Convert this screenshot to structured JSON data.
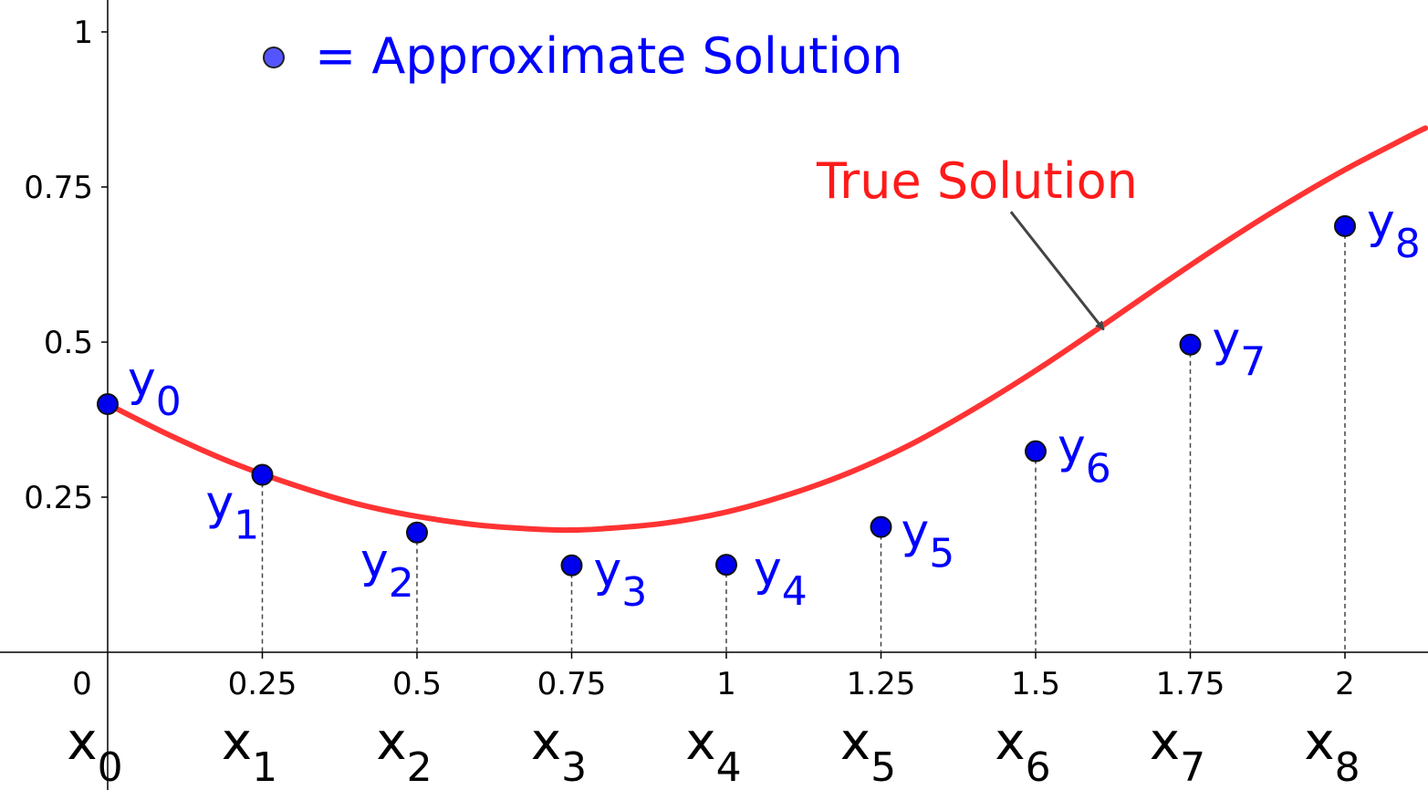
{
  "chart_data": {
    "type": "scatter",
    "x_ticks": [
      0,
      0.25,
      0.5,
      0.75,
      1,
      1.25,
      1.5,
      1.75,
      2
    ],
    "x_tick_labels": [
      "0",
      "0.25",
      "0.5",
      "0.75",
      "1",
      "1.25",
      "1.5",
      "1.75",
      "2"
    ],
    "y_ticks": [
      0.25,
      0.5,
      0.75,
      1
    ],
    "y_tick_labels": [
      "0.25",
      "0.5",
      "0.75",
      "1"
    ],
    "xlim": [
      0,
      2.13
    ],
    "ylim": [
      0,
      1.04
    ],
    "x_node_labels": [
      {
        "base": "x",
        "sub": "0"
      },
      {
        "base": "x",
        "sub": "1"
      },
      {
        "base": "x",
        "sub": "2"
      },
      {
        "base": "x",
        "sub": "3"
      },
      {
        "base": "x",
        "sub": "4"
      },
      {
        "base": "x",
        "sub": "5"
      },
      {
        "base": "x",
        "sub": "6"
      },
      {
        "base": "x",
        "sub": "7"
      },
      {
        "base": "x",
        "sub": "8"
      }
    ],
    "approximate_points": [
      {
        "x": 0,
        "y": 0.4,
        "base": "y",
        "sub": "0"
      },
      {
        "x": 0.25,
        "y": 0.286,
        "base": "y",
        "sub": "1"
      },
      {
        "x": 0.5,
        "y": 0.193,
        "base": "y",
        "sub": "2"
      },
      {
        "x": 0.75,
        "y": 0.14,
        "base": "y",
        "sub": "3"
      },
      {
        "x": 1,
        "y": 0.141,
        "base": "y",
        "sub": "4"
      },
      {
        "x": 1.25,
        "y": 0.202,
        "base": "y",
        "sub": "5"
      },
      {
        "x": 1.5,
        "y": 0.324,
        "base": "y",
        "sub": "6"
      },
      {
        "x": 1.75,
        "y": 0.496,
        "base": "y",
        "sub": "7"
      },
      {
        "x": 2,
        "y": 0.687,
        "base": "y",
        "sub": "8"
      }
    ],
    "true_solution": {
      "x": [
        0,
        0.1,
        0.2,
        0.3,
        0.4,
        0.5,
        0.6,
        0.7,
        0.75,
        0.8,
        0.9,
        1.0,
        1.1,
        1.2,
        1.3,
        1.4,
        1.5,
        1.6,
        1.7,
        1.8,
        1.9,
        2.0,
        2.1,
        2.13
      ],
      "y": [
        0.4,
        0.35,
        0.306,
        0.27,
        0.24,
        0.219,
        0.205,
        0.198,
        0.197,
        0.199,
        0.208,
        0.226,
        0.254,
        0.29,
        0.336,
        0.392,
        0.454,
        0.521,
        0.59,
        0.657,
        0.72,
        0.778,
        0.83,
        0.845
      ],
      "color": "#ff3333"
    },
    "legend": {
      "text": "= Approximate Solution",
      "marker_color": "#5555ff"
    },
    "annotation": {
      "text": "True Solution",
      "color": "#ff1a1a",
      "arrow_from": [
        1.46,
        0.71
      ],
      "arrow_to": [
        1.61,
        0.52
      ]
    },
    "point_color": "#0000ee",
    "label_color": "#0000ff"
  }
}
